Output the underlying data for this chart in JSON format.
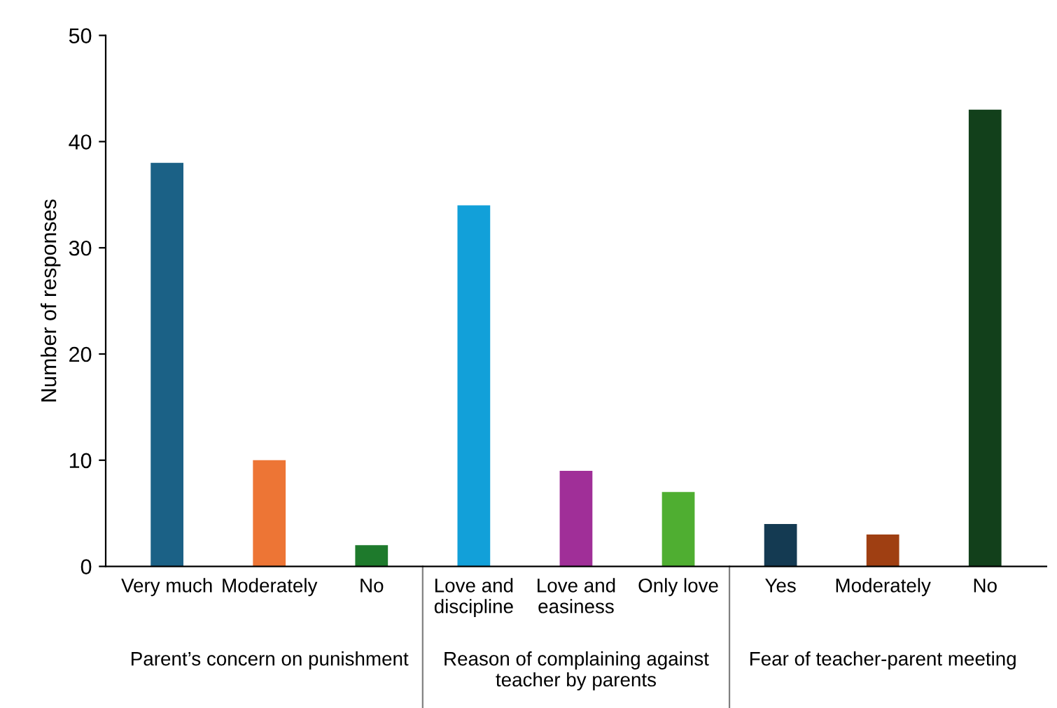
{
  "chart_data": {
    "type": "bar",
    "ylabel": "Number of responses",
    "categories": [
      "Very much",
      "Moderately",
      "No",
      "Love and discipline",
      "Love and easiness",
      "Only love",
      "Yes",
      "Moderately",
      "No"
    ],
    "values": [
      38,
      10,
      2,
      34,
      9,
      7,
      4,
      3,
      43
    ],
    "colors": [
      "#1b6186",
      "#ed7535",
      "#1e7a2c",
      "#12a0d9",
      "#a02f98",
      "#4fae31",
      "#143a52",
      "#9f3f12",
      "#12401b"
    ],
    "ylim": [
      0,
      50
    ],
    "yticks": [
      0,
      10,
      20,
      30,
      40,
      50
    ],
    "grid": false,
    "legend": false,
    "annotations": [
      "Parent’s concern on punishment",
      "Reason of complaining against teacher by parents",
      "Fear of teacher-parent meeting"
    ]
  }
}
